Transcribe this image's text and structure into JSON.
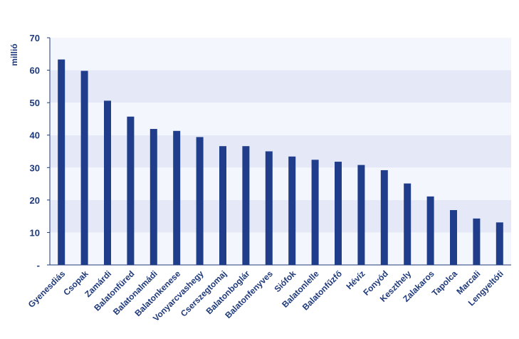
{
  "chart_data": {
    "type": "bar",
    "ylabel": "millió",
    "ylim": [
      0,
      70
    ],
    "yticks": [
      0,
      10,
      20,
      30,
      40,
      50,
      60,
      70
    ],
    "ytick_labels": [
      "-",
      "10",
      "20",
      "30",
      "40",
      "50",
      "60",
      "70"
    ],
    "grid": "alternating horizontal bands",
    "categories": [
      "Gyenesdiás",
      "Csopak",
      "Zamárdi",
      "Balatonfüred",
      "Balatonalmádi",
      "Balatonkenese",
      "Vonyarcvashegy",
      "Cserszegtomaj",
      "Balatonboglár",
      "Balatonfenyves",
      "Siófok",
      "Balatonlelle",
      "Balatonfűzfő",
      "Hévíz",
      "Fonyód",
      "Keszthely",
      "Zalakaros",
      "Tapolca",
      "Marcali",
      "Lengyeltóti"
    ],
    "values": [
      63.3,
      59.8,
      50.6,
      45.7,
      41.9,
      41.3,
      39.4,
      36.6,
      36.6,
      35.0,
      33.4,
      32.4,
      31.8,
      30.8,
      29.2,
      25.1,
      21.1,
      16.9,
      14.3,
      13.1
    ],
    "colors": {
      "bar": "#1F3D8A",
      "band_light": "#F4F6FD",
      "band_dark": "#E4E8F7",
      "axis": "#1F3A7A",
      "text": "#1F3A7A"
    }
  }
}
